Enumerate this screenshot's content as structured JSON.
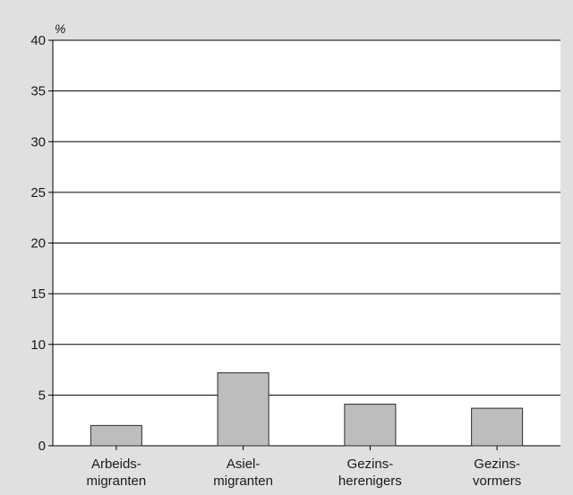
{
  "chart_data": {
    "type": "bar",
    "ylabel": "%",
    "ylim": [
      0,
      40
    ],
    "yticks": [
      0,
      5,
      10,
      15,
      20,
      25,
      30,
      35,
      40
    ],
    "grid": true,
    "categories": [
      [
        "Arbeids-",
        "migranten"
      ],
      [
        "Asiel-",
        "migranten"
      ],
      [
        "Gezins-",
        "herenigers"
      ],
      [
        "Gezins-",
        "vormers"
      ]
    ],
    "values": [
      2.0,
      7.2,
      4.1,
      3.7
    ],
    "colors": {
      "plot_background": "#ffffff",
      "page_background": "#e0e0e0",
      "bar_fill": "#bdbdbd",
      "bar_stroke": "#2b2b2b",
      "gridline": "#000000"
    }
  }
}
